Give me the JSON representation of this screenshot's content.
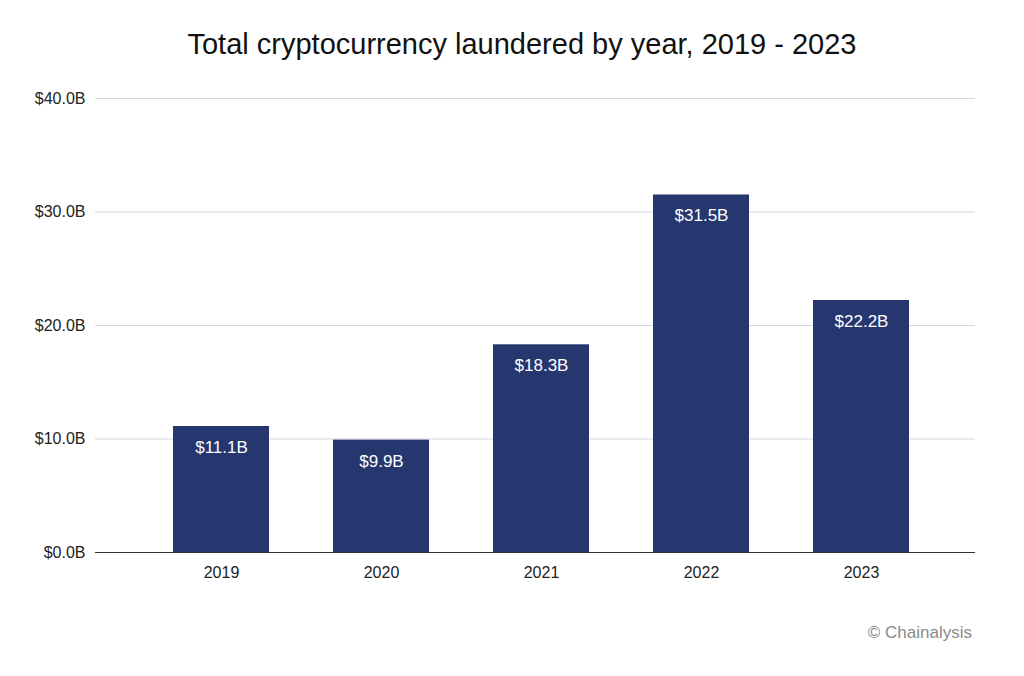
{
  "chart_data": {
    "type": "bar",
    "title": "Total cryptocurrency laundered by year, 2019 - 2023",
    "annotations": [
      "© Chainalysis"
    ],
    "categories": [
      "2019",
      "2020",
      "2021",
      "2022",
      "2023"
    ],
    "values": [
      11.1,
      9.9,
      18.3,
      31.5,
      22.2
    ],
    "value_labels": [
      "$11.1B",
      "$9.9B",
      "$18.3B",
      "$31.5B",
      "$22.2B"
    ],
    "data_labels": true,
    "color": "#26366e",
    "ylim": [
      0,
      40
    ],
    "yticks": [
      {
        "value": 0,
        "label": "$0.0B"
      },
      {
        "value": 10,
        "label": "$10.0B"
      },
      {
        "value": 20,
        "label": "$20.0B"
      },
      {
        "value": 30,
        "label": "$30.0B"
      },
      {
        "value": 40,
        "label": "$40.0B"
      }
    ],
    "grid": true
  }
}
